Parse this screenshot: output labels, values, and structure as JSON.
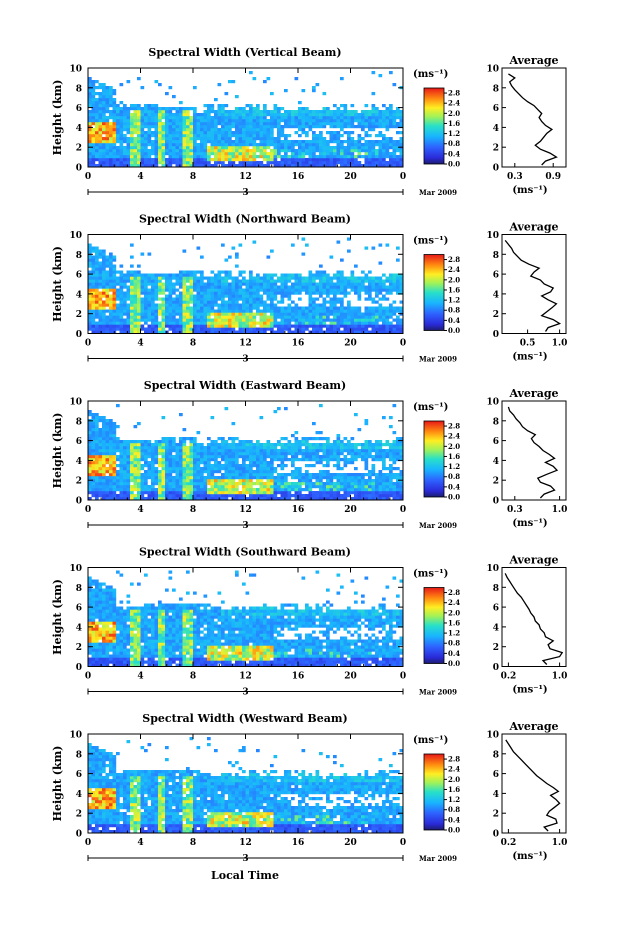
{
  "figure": {
    "xlabel": "Local Time",
    "date_label": "Mar 2009",
    "day_label": "3",
    "ylabel": "Height (km)",
    "unit_label": "(ms⁻¹)",
    "average_title": "Average"
  },
  "chart_data": [
    {
      "type": "heatmap",
      "title": "Spectral Width (Vertical Beam)",
      "x_ticks": [
        "0",
        "4",
        "8",
        "12",
        "16",
        "20",
        "0"
      ],
      "xlim": [
        0,
        24
      ],
      "y_ticks": [
        "0",
        "2",
        "4",
        "6",
        "8",
        "10"
      ],
      "ylim": [
        0,
        10
      ],
      "colorbar": {
        "ticks": [
          "0.0",
          "0.4",
          "0.8",
          "1.2",
          "1.6",
          "2.0",
          "2.4",
          "2.8"
        ],
        "range": [
          0,
          3.0
        ]
      },
      "average": {
        "xlabel": "(ms⁻¹)",
        "x_ticks": [
          "0.3",
          "0.9"
        ],
        "x_tick_values": [
          0.3,
          0.9
        ],
        "xlim": [
          0.1,
          1.1
        ],
        "heights": [
          0.2,
          0.6,
          1.0,
          1.4,
          1.8,
          2.2,
          2.6,
          3.0,
          3.4,
          3.8,
          4.2,
          4.6,
          5.0,
          5.4,
          5.8,
          6.2,
          6.6,
          7.0,
          7.4,
          7.8,
          8.2,
          8.6,
          9.0,
          9.4
        ],
        "values": [
          0.72,
          0.78,
          0.95,
          0.85,
          0.7,
          0.62,
          0.7,
          0.75,
          0.8,
          0.88,
          0.78,
          0.72,
          0.68,
          0.72,
          0.66,
          0.6,
          0.5,
          0.42,
          0.36,
          0.3,
          0.25,
          0.22,
          0.3,
          0.2
        ]
      }
    },
    {
      "type": "heatmap",
      "title": "Spectral Width (Northward Beam)",
      "x_ticks": [
        "0",
        "4",
        "8",
        "12",
        "16",
        "20",
        "0"
      ],
      "xlim": [
        0,
        24
      ],
      "y_ticks": [
        "0",
        "2",
        "4",
        "6",
        "8",
        "10"
      ],
      "ylim": [
        0,
        10
      ],
      "colorbar": {
        "ticks": [
          "0.0",
          "0.4",
          "0.8",
          "1.2",
          "1.6",
          "2.0",
          "2.4",
          "2.8"
        ],
        "range": [
          0,
          3.0
        ]
      },
      "average": {
        "xlabel": "(ms⁻¹)",
        "x_ticks": [
          "0.5",
          "1.0"
        ],
        "x_tick_values": [
          0.5,
          1.0
        ],
        "xlim": [
          0.1,
          1.1
        ],
        "heights": [
          0.2,
          0.6,
          1.0,
          1.4,
          1.8,
          2.2,
          2.6,
          3.0,
          3.4,
          3.8,
          4.2,
          4.6,
          5.0,
          5.4,
          5.8,
          6.2,
          6.6,
          7.0,
          7.4,
          7.8,
          8.2,
          8.6,
          9.0,
          9.4
        ],
        "values": [
          0.78,
          0.82,
          1.0,
          0.9,
          0.72,
          0.8,
          0.88,
          0.95,
          0.82,
          0.72,
          0.86,
          0.9,
          0.76,
          0.7,
          0.55,
          0.6,
          0.68,
          0.52,
          0.4,
          0.34,
          0.28,
          0.25,
          0.2,
          0.15
        ]
      }
    },
    {
      "type": "heatmap",
      "title": "Spectral Width (Eastward Beam)",
      "x_ticks": [
        "0",
        "4",
        "8",
        "12",
        "16",
        "20",
        "0"
      ],
      "xlim": [
        0,
        24
      ],
      "y_ticks": [
        "0",
        "2",
        "4",
        "6",
        "8",
        "10"
      ],
      "ylim": [
        0,
        10
      ],
      "colorbar": {
        "ticks": [
          "0.0",
          "0.4",
          "0.8",
          "1.2",
          "1.6",
          "2.0",
          "2.4",
          "2.8"
        ],
        "range": [
          0,
          3.0
        ]
      },
      "average": {
        "xlabel": "(ms⁻¹)",
        "x_ticks": [
          "0.3",
          "1.0"
        ],
        "x_tick_values": [
          0.3,
          1.0
        ],
        "xlim": [
          0.1,
          1.1
        ],
        "heights": [
          0.2,
          0.6,
          1.0,
          1.4,
          1.8,
          2.2,
          2.6,
          3.0,
          3.4,
          3.8,
          4.2,
          4.6,
          5.0,
          5.4,
          5.8,
          6.2,
          6.6,
          7.0,
          7.4,
          7.8,
          8.2,
          8.6,
          9.0,
          9.4
        ],
        "values": [
          0.7,
          0.76,
          0.92,
          0.86,
          0.7,
          0.66,
          0.8,
          0.96,
          0.9,
          0.78,
          0.92,
          0.84,
          0.74,
          0.68,
          0.6,
          0.56,
          0.62,
          0.5,
          0.42,
          0.38,
          0.32,
          0.28,
          0.22,
          0.2
        ]
      }
    },
    {
      "type": "heatmap",
      "title": "Spectral Width (Southward Beam)",
      "x_ticks": [
        "0",
        "4",
        "8",
        "12",
        "16",
        "20",
        "0"
      ],
      "xlim": [
        0,
        24
      ],
      "y_ticks": [
        "0",
        "2",
        "4",
        "6",
        "8",
        "10"
      ],
      "ylim": [
        0,
        10
      ],
      "colorbar": {
        "ticks": [
          "0.0",
          "0.4",
          "0.8",
          "1.2",
          "1.6",
          "2.0",
          "2.4",
          "2.8"
        ],
        "range": [
          0,
          3.0
        ]
      },
      "average": {
        "xlabel": "(ms⁻¹)",
        "x_ticks": [
          "0.2",
          "1.0"
        ],
        "x_tick_values": [
          0.2,
          1.0
        ],
        "xlim": [
          0.1,
          1.1
        ],
        "heights": [
          0.2,
          0.6,
          1.0,
          1.4,
          1.8,
          2.2,
          2.6,
          3.0,
          3.4,
          3.8,
          4.2,
          4.6,
          5.0,
          5.4,
          5.8,
          6.2,
          6.6,
          7.0,
          7.4,
          7.8,
          8.2,
          8.6,
          9.0,
          9.4
        ],
        "values": [
          0.8,
          0.74,
          1.0,
          1.04,
          0.85,
          0.82,
          0.9,
          0.78,
          0.76,
          0.7,
          0.68,
          0.62,
          0.6,
          0.55,
          0.52,
          0.48,
          0.44,
          0.4,
          0.34,
          0.3,
          0.26,
          0.22,
          0.18,
          0.15
        ]
      }
    },
    {
      "type": "heatmap",
      "title": "Spectral Width (Westward Beam)",
      "x_ticks": [
        "0",
        "4",
        "8",
        "12",
        "16",
        "20",
        "0"
      ],
      "xlim": [
        0,
        24
      ],
      "y_ticks": [
        "0",
        "2",
        "4",
        "6",
        "8",
        "10"
      ],
      "ylim": [
        0,
        10
      ],
      "colorbar": {
        "ticks": [
          "0.0",
          "0.4",
          "0.8",
          "1.2",
          "1.6",
          "2.0",
          "2.4",
          "2.8"
        ],
        "range": [
          0,
          3.0
        ]
      },
      "average": {
        "xlabel": "(ms⁻¹)",
        "x_ticks": [
          "0.2",
          "1.0"
        ],
        "x_tick_values": [
          0.2,
          1.0
        ],
        "xlim": [
          0.1,
          1.1
        ],
        "heights": [
          0.2,
          0.6,
          1.0,
          1.4,
          1.8,
          2.2,
          2.6,
          3.0,
          3.4,
          3.8,
          4.2,
          4.6,
          5.0,
          5.4,
          5.8,
          6.2,
          6.6,
          7.0,
          7.4,
          7.8,
          8.2,
          8.6,
          9.0,
          9.4
        ],
        "values": [
          0.82,
          0.76,
          0.96,
          0.94,
          0.8,
          0.84,
          0.92,
          1.0,
          0.94,
          0.86,
          0.98,
          0.9,
          0.8,
          0.72,
          0.64,
          0.58,
          0.52,
          0.46,
          0.4,
          0.34,
          0.28,
          0.24,
          0.2,
          0.16
        ]
      }
    }
  ]
}
